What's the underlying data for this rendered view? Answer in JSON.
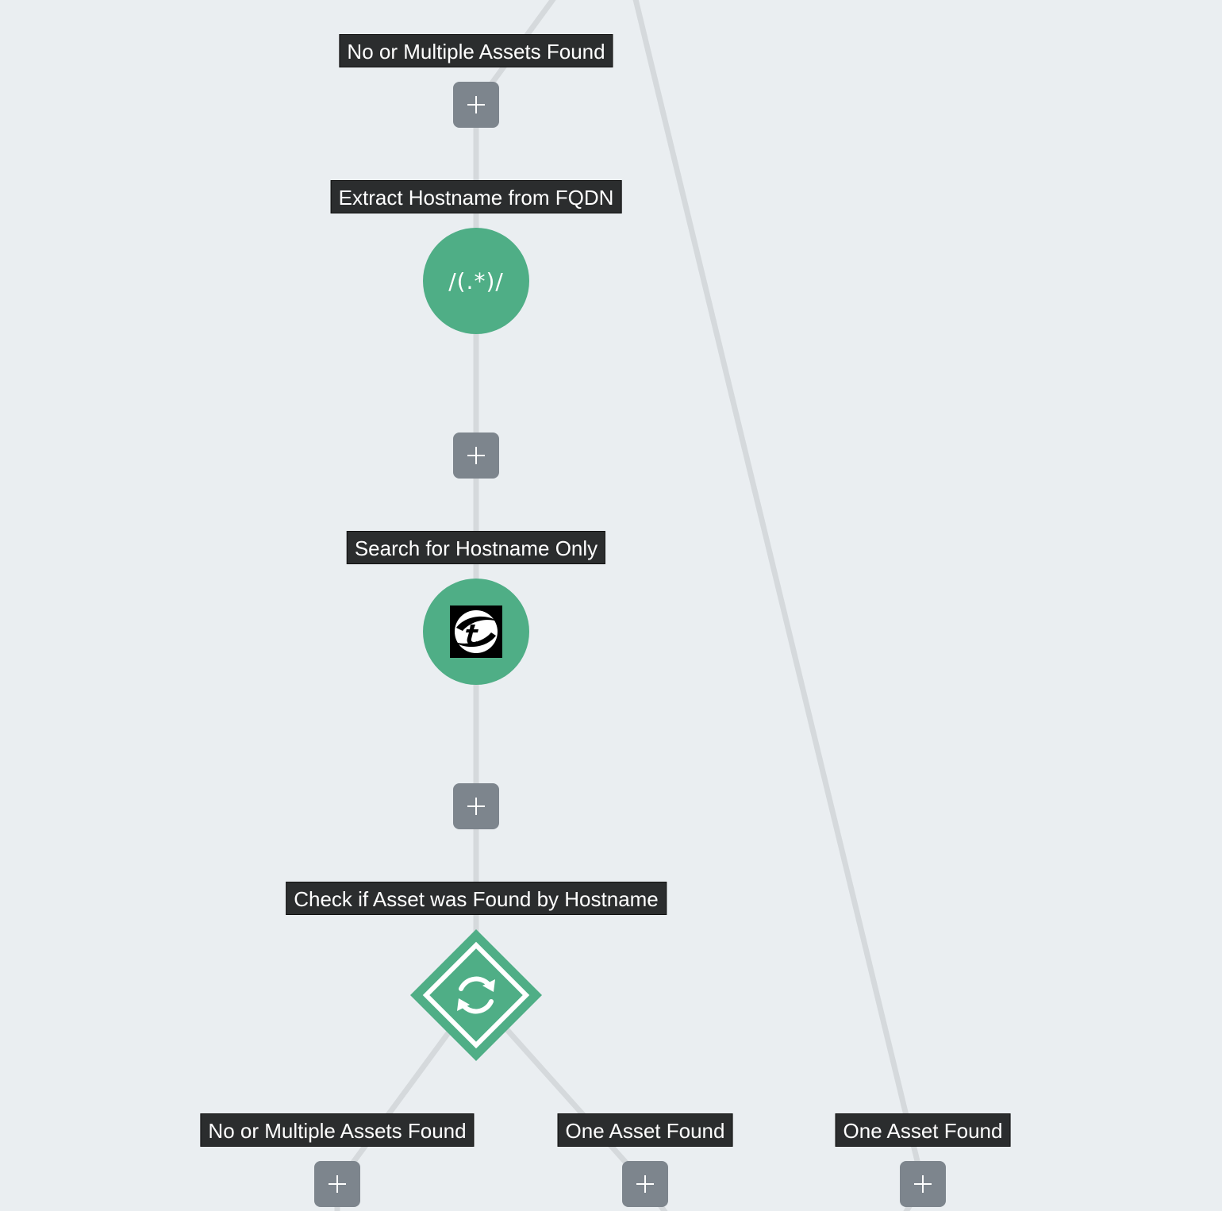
{
  "colors": {
    "canvas_bg": "#eaeef1",
    "connector": "#d5d9dc",
    "label_bg": "#2b2d2e",
    "label_text": "#ffffff",
    "add_button": "#7d858d",
    "node_green": "#4fae86"
  },
  "labels": {
    "top_branch": "No or Multiple Assets Found",
    "extract_step": "Extract Hostname from FQDN",
    "search_step": "Search for Hostname Only",
    "check_step": "Check if Asset was Found by Hostname",
    "bottom_left_branch": "No or Multiple Assets Found",
    "bottom_mid_branch": "One Asset Found",
    "bottom_right_branch": "One Asset Found"
  },
  "nodes": {
    "extract": {
      "type": "regex",
      "glyph": "/(.*)/",
      "icon": "regex-icon"
    },
    "search": {
      "type": "integration",
      "icon": "vendor-logo-icon"
    },
    "check": {
      "type": "decision",
      "icon": "sync-icon"
    }
  },
  "buttons": {
    "add": {
      "icon": "plus-icon"
    }
  }
}
